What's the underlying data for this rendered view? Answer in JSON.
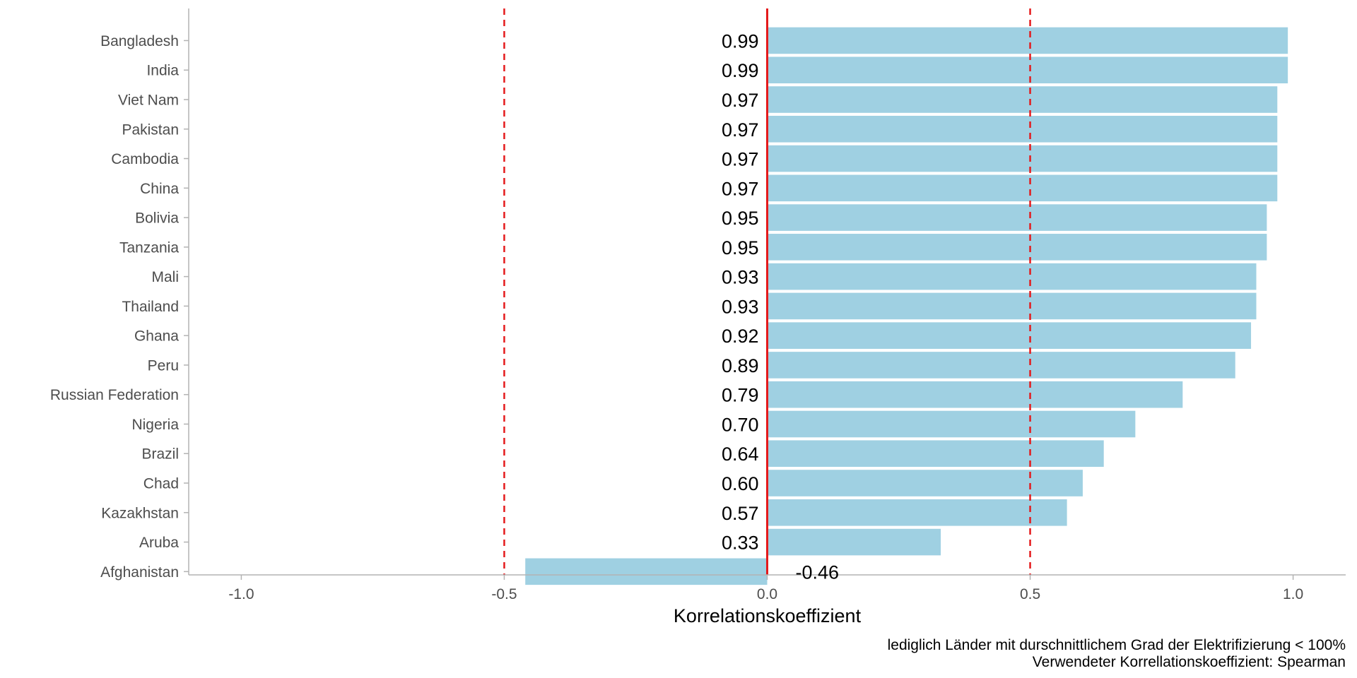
{
  "chart_data": {
    "type": "bar",
    "orientation": "horizontal",
    "categories": [
      "Bangladesh",
      "India",
      "Viet Nam",
      "Pakistan",
      "Cambodia",
      "China",
      "Bolivia",
      "Tanzania",
      "Mali",
      "Thailand",
      "Ghana",
      "Peru",
      "Russian Federation",
      "Nigeria",
      "Brazil",
      "Chad",
      "Kazakhstan",
      "Aruba",
      "Afghanistan"
    ],
    "values": [
      0.99,
      0.99,
      0.97,
      0.97,
      0.97,
      0.97,
      0.95,
      0.95,
      0.93,
      0.93,
      0.92,
      0.89,
      0.79,
      0.7,
      0.64,
      0.6,
      0.57,
      0.33,
      -0.46
    ],
    "value_labels": [
      "0.99",
      "0.99",
      "0.97",
      "0.97",
      "0.97",
      "0.97",
      "0.95",
      "0.95",
      "0.93",
      "0.93",
      "0.92",
      "0.89",
      "0.79",
      "0.70",
      "0.64",
      "0.60",
      "0.57",
      "0.33",
      "-0.46"
    ],
    "xlabel": "Korrelationskoeffizient",
    "ylabel": "",
    "xlim": [
      -1.1,
      1.1
    ],
    "xticks": [
      -1.0,
      -0.5,
      0.0,
      0.5,
      1.0
    ],
    "xtick_labels": [
      "-1.0",
      "-0.5",
      "0.0",
      "0.5",
      "1.0"
    ],
    "reference_lines": [
      {
        "x": 0.0,
        "style": "solid",
        "color": "#e41a1c"
      },
      {
        "x": -0.5,
        "style": "dashed",
        "color": "#e41a1c"
      },
      {
        "x": 0.5,
        "style": "dashed",
        "color": "#e41a1c"
      }
    ],
    "caption": [
      "lediglich Länder mit durschnittlichem Grad der Elektrifizierung < 100%",
      "Verwendeter Korrellationskoeffizient: Spearman"
    ],
    "bar_color": "#9fd0e2",
    "grid": false,
    "legend": "none"
  }
}
